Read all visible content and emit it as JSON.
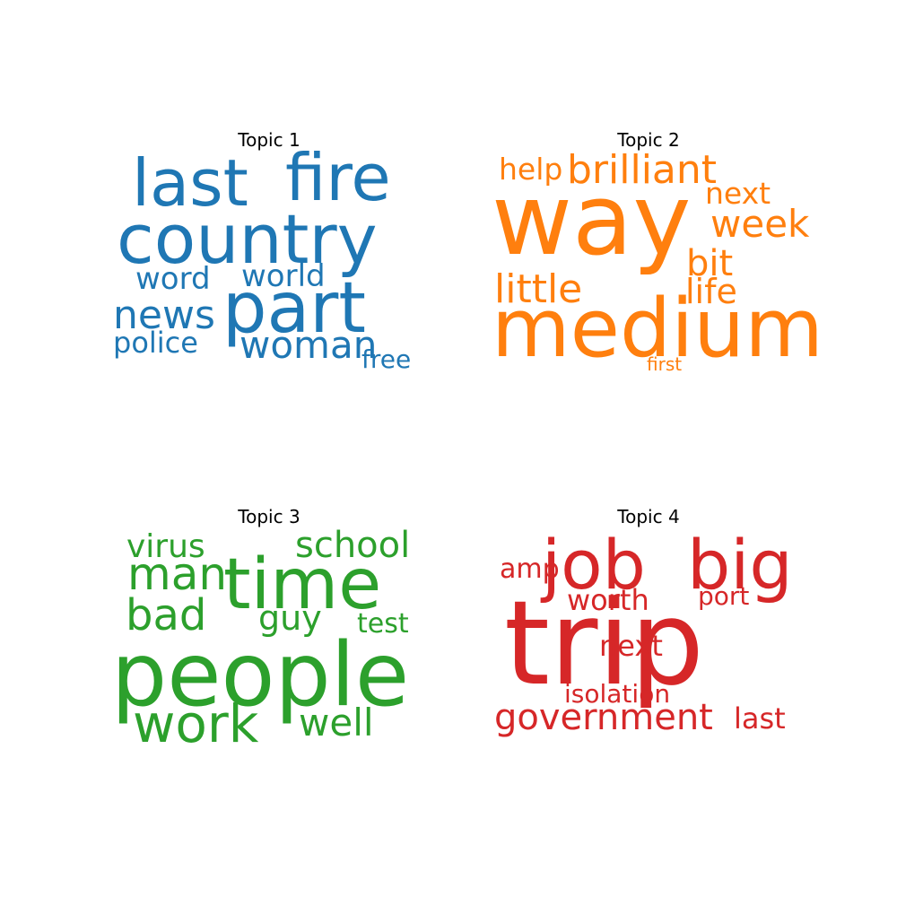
{
  "chart_data": [
    {
      "type": "wordcloud",
      "title": "Topic 1",
      "color": "#1f77b4",
      "words": [
        "last",
        "fire",
        "country",
        "word",
        "world",
        "news",
        "part",
        "police",
        "woman",
        "free"
      ]
    },
    {
      "type": "wordcloud",
      "title": "Topic 2",
      "color": "#ff7f0e",
      "words": [
        "help",
        "brilliant",
        "way",
        "next",
        "week",
        "bit",
        "little",
        "life",
        "medium",
        "first"
      ]
    },
    {
      "type": "wordcloud",
      "title": "Topic 3",
      "color": "#2ca02c",
      "words": [
        "virus",
        "school",
        "man",
        "time",
        "bad",
        "guy",
        "test",
        "people",
        "work",
        "well"
      ]
    },
    {
      "type": "wordcloud",
      "title": "Topic 4",
      "color": "#d62728",
      "words": [
        "amp",
        "job",
        "big",
        "worth",
        "port",
        "trip",
        "next",
        "isolation",
        "government",
        "last"
      ]
    }
  ]
}
